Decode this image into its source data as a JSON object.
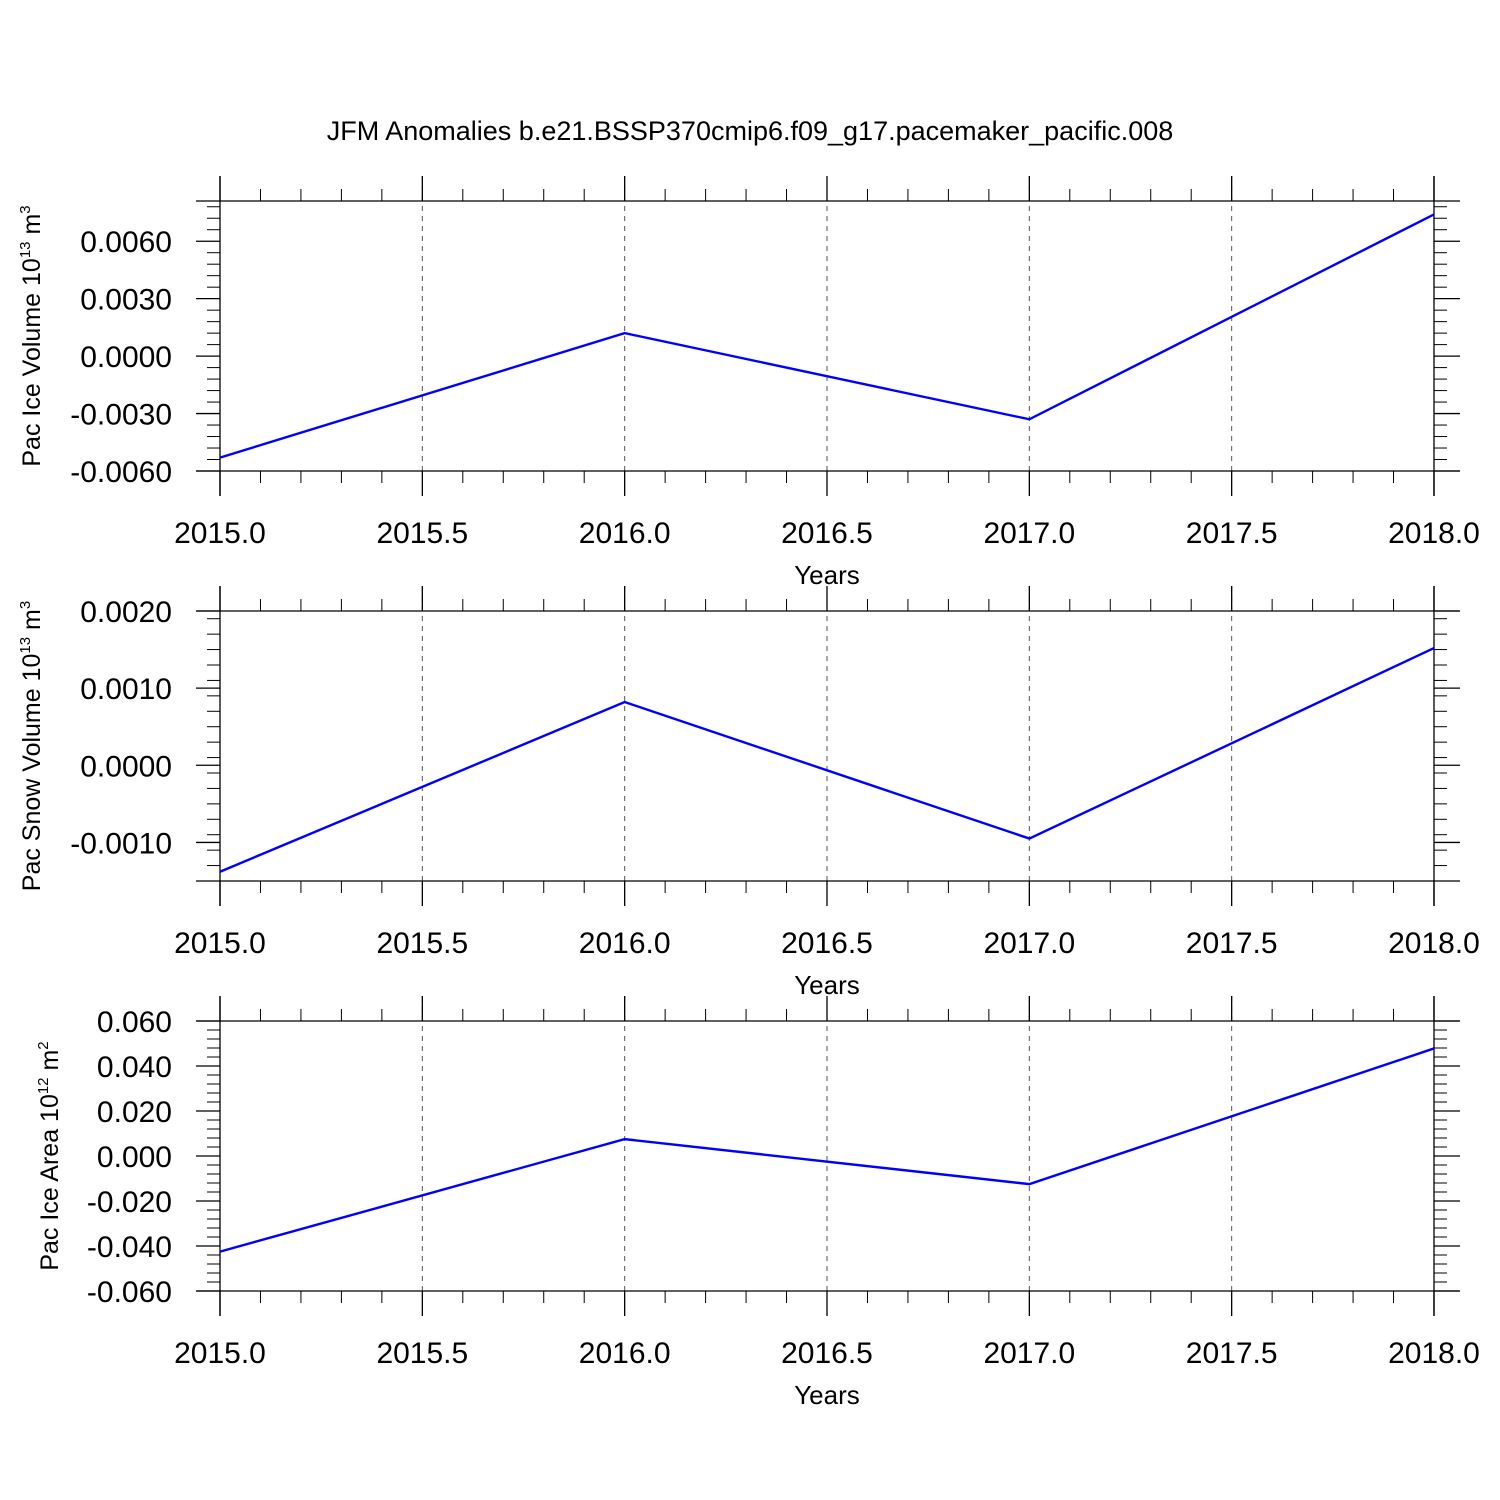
{
  "title": "JFM Anomalies b.e21.BSSP370cmip6.f09_g17.pacemaker_pacific.008",
  "chart_data": [
    {
      "type": "line",
      "ylabel": "Pac Ice Volume 10",
      "ylabel_exp": "13",
      "ylabel_unit": " m",
      "ylabel_unit_exp": "3",
      "xlabel": "Years",
      "x": [
        2015,
        2016,
        2017,
        2018
      ],
      "series": [
        {
          "values": [
            -0.0053,
            0.0012,
            -0.0033,
            0.0074
          ]
        }
      ],
      "xlim": [
        2015,
        2018
      ],
      "ylim": [
        -0.006,
        0.0081
      ],
      "xticks": [
        2015.0,
        2015.5,
        2016.0,
        2016.5,
        2017.0,
        2017.5,
        2018.0
      ],
      "xtick_labels": [
        "2015.0",
        "2015.5",
        "2016.0",
        "2016.5",
        "2017.0",
        "2017.5",
        "2018.0"
      ],
      "yticks": [
        0.006,
        0.003,
        0.0,
        -0.003,
        -0.006
      ],
      "ytick_labels": [
        "0.0060",
        "0.0030",
        "0.0000",
        "-0.0030",
        "-0.0060"
      ],
      "grid": "vertical dashed",
      "line_color": "#0000ff"
    },
    {
      "type": "line",
      "ylabel": "Pac Snow Volume 10",
      "ylabel_exp": "13",
      "ylabel_unit": " m",
      "ylabel_unit_exp": "3",
      "xlabel": "Years",
      "x": [
        2015,
        2016,
        2017,
        2018
      ],
      "series": [
        {
          "values": [
            -0.00138,
            0.00082,
            -0.00095,
            0.00152
          ]
        }
      ],
      "xlim": [
        2015,
        2018
      ],
      "ylim": [
        -0.0015,
        0.002
      ],
      "xticks": [
        2015.0,
        2015.5,
        2016.0,
        2016.5,
        2017.0,
        2017.5,
        2018.0
      ],
      "xtick_labels": [
        "2015.0",
        "2015.5",
        "2016.0",
        "2016.5",
        "2017.0",
        "2017.5",
        "2018.0"
      ],
      "yticks": [
        0.002,
        0.001,
        0.0,
        -0.001
      ],
      "ytick_labels": [
        "0.0020",
        "0.0010",
        "0.0000",
        "-0.0010"
      ],
      "grid": "vertical dashed",
      "line_color": "#0000ff"
    },
    {
      "type": "line",
      "ylabel": "Pac Ice Area 10",
      "ylabel_exp": "12",
      "ylabel_unit": " m",
      "ylabel_unit_exp": "2",
      "xlabel": "Years",
      "x": [
        2015,
        2016,
        2017,
        2018
      ],
      "series": [
        {
          "values": [
            -0.0425,
            0.0075,
            -0.0125,
            0.0478
          ]
        }
      ],
      "xlim": [
        2015,
        2018
      ],
      "ylim": [
        -0.06,
        0.06
      ],
      "xticks": [
        2015.0,
        2015.5,
        2016.0,
        2016.5,
        2017.0,
        2017.5,
        2018.0
      ],
      "xtick_labels": [
        "2015.0",
        "2015.5",
        "2016.0",
        "2016.5",
        "2017.0",
        "2017.5",
        "2018.0"
      ],
      "yticks": [
        0.06,
        0.04,
        0.02,
        0.0,
        -0.02,
        -0.04,
        -0.06
      ],
      "ytick_labels": [
        "0.060",
        "0.040",
        "0.020",
        "0.000",
        "-0.020",
        "-0.040",
        "-0.060"
      ],
      "grid": "vertical dashed",
      "line_color": "#0000ff"
    }
  ]
}
